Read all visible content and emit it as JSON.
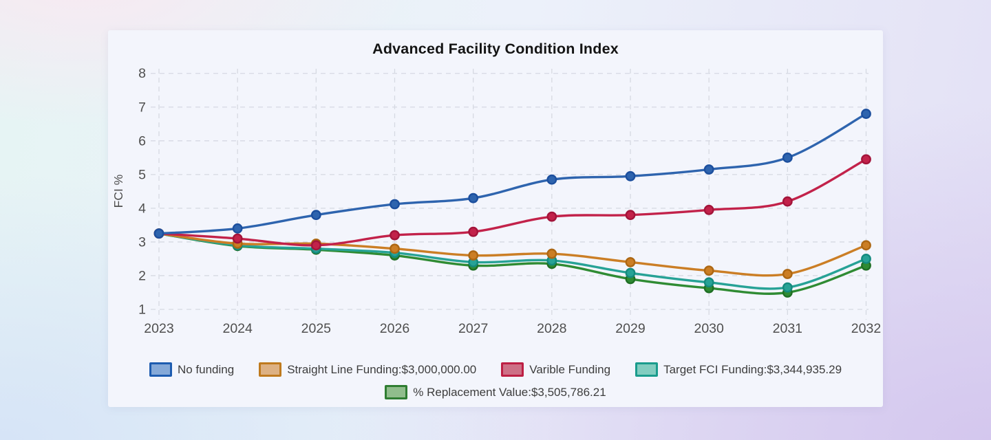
{
  "card": {
    "background": "#f3f5fc"
  },
  "chart_data": {
    "type": "line",
    "title": "Advanced Facility Condition Index",
    "ylabel": "FCI %",
    "xlabel": "",
    "x": [
      2023,
      2024,
      2025,
      2026,
      2027,
      2028,
      2029,
      2030,
      2031,
      2032
    ],
    "yticks": [
      1,
      2,
      3,
      4,
      5,
      6,
      7,
      8
    ],
    "ylim": [
      1,
      8
    ],
    "grid": "dashed",
    "legend_position": "bottom",
    "series": [
      {
        "name": "No funding",
        "color": "#2e64ae",
        "dot_stroke": "#1c4f9e",
        "legend_fill": "#85a9d8",
        "legend_border": "#1d5cb0",
        "values": [
          3.25,
          3.4,
          3.8,
          4.12,
          4.3,
          4.85,
          4.95,
          5.15,
          5.5,
          6.8
        ]
      },
      {
        "name": "Straight Line Funding:$3,000,000.00",
        "color": "#cb7e25",
        "dot_stroke": "#ad6713",
        "legend_fill": "#ddb183",
        "legend_border": "#bf7a1e",
        "values": [
          3.25,
          2.95,
          2.95,
          2.8,
          2.6,
          2.65,
          2.4,
          2.15,
          2.05,
          2.9
        ]
      },
      {
        "name": "Varible Funding",
        "color": "#c2224a",
        "dot_stroke": "#a3143a",
        "legend_fill": "#cd7086",
        "legend_border": "#bd1f44",
        "values": [
          3.25,
          3.1,
          2.9,
          3.2,
          3.3,
          3.75,
          3.8,
          3.95,
          4.2,
          5.45
        ]
      },
      {
        "name": "Target FCI Funding:$3,344,935.29",
        "color": "#27a296",
        "dot_stroke": "#148a7e",
        "legend_fill": "#82cdc0",
        "legend_border": "#1a9c8d",
        "values": [
          3.25,
          2.9,
          2.8,
          2.68,
          2.4,
          2.45,
          2.08,
          1.8,
          1.65,
          2.5
        ]
      },
      {
        "name": "% Replacement Value:$3,505,786.21",
        "color": "#2f8b33",
        "dot_stroke": "#1f6f24",
        "legend_fill": "#90bd8c",
        "legend_border": "#2f7d32",
        "values": [
          3.25,
          2.88,
          2.77,
          2.6,
          2.3,
          2.35,
          1.9,
          1.63,
          1.5,
          2.3
        ]
      }
    ]
  }
}
